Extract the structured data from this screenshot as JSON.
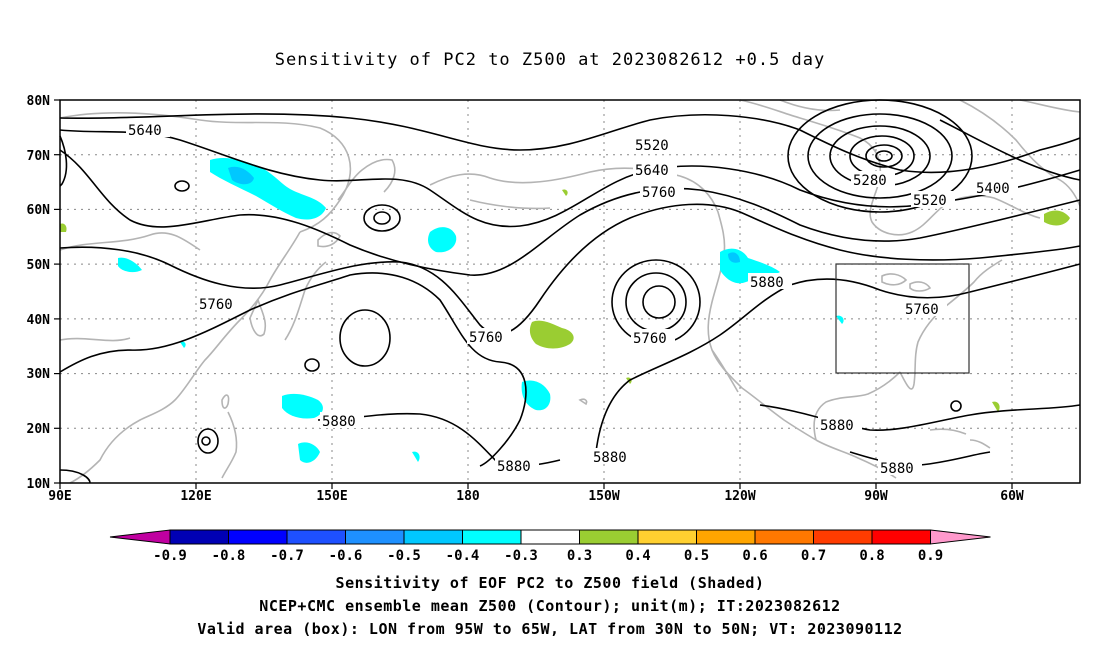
{
  "title": "Sensitivity of PC2 to Z500 at 2023082612 +0.5 day",
  "lat_ticks": [
    "80N",
    "70N",
    "60N",
    "50N",
    "40N",
    "30N",
    "20N",
    "10N"
  ],
  "lon_ticks": [
    "90E",
    "120E",
    "150E",
    "180",
    "150W",
    "120W",
    "90W",
    "60W"
  ],
  "contour_labels": [
    {
      "text": "5640"
    },
    {
      "text": "5520"
    },
    {
      "text": "5640"
    },
    {
      "text": "5760"
    },
    {
      "text": "5280"
    },
    {
      "text": "5400"
    },
    {
      "text": "5520"
    },
    {
      "text": "5760"
    },
    {
      "text": "5760"
    },
    {
      "text": "5760"
    },
    {
      "text": "5880"
    },
    {
      "text": "5880"
    },
    {
      "text": "5880"
    },
    {
      "text": "5880"
    },
    {
      "text": "5880"
    },
    {
      "text": "5760"
    },
    {
      "text": "5880"
    }
  ],
  "colorbar": {
    "labels": [
      "-0.9",
      "-0.8",
      "-0.7",
      "-0.6",
      "-0.5",
      "-0.4",
      "-0.3",
      "0.3",
      "0.4",
      "0.5",
      "0.6",
      "0.7",
      "0.8",
      "0.9"
    ],
    "colors": [
      "#0000b4",
      "#0000ff",
      "#1e50ff",
      "#1e90ff",
      "#00c8ff",
      "#00ffff",
      "#ffffff",
      "#9acd32",
      "#ffd030",
      "#ffa500",
      "#ff7800",
      "#ff3c00",
      "#ff0000"
    ],
    "low_arrow": "#c000a0",
    "high_arrow": "#ff99cc"
  },
  "captions": [
    "Sensitivity of EOF PC2 to Z500 field (Shaded)",
    "NCEP+CMC ensemble mean Z500 (Contour); unit(m); IT:2023082612",
    "Valid area (box): LON from 95W to 65W, LAT from 30N to 50N; VT: 2023090112"
  ]
}
